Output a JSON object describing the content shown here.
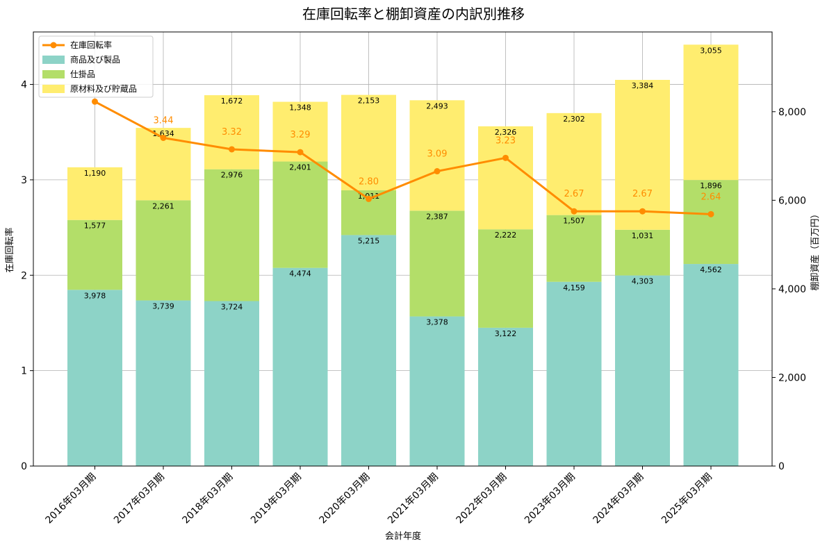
{
  "chart_data": {
    "type": "bar",
    "title": "在庫回転率と棚卸資産の内訳別推移",
    "xlabel": "会計年度",
    "ylabel_left": "在庫回転率",
    "ylabel_right": "棚卸資産（百万円）",
    "categories": [
      "2016年03月期",
      "2017年03月期",
      "2018年03月期",
      "2019年03月期",
      "2020年03月期",
      "2021年03月期",
      "2022年03月期",
      "2023年03月期",
      "2024年03月期",
      "2025年03月期"
    ],
    "series": [
      {
        "name": "商品及び製品",
        "kind": "bar",
        "axis": "right",
        "color": "#8dd3c7",
        "values": [
          3978,
          3739,
          3724,
          4474,
          5215,
          3378,
          3122,
          4159,
          4303,
          4562
        ],
        "labels": [
          "3,978",
          "3,739",
          "3,724",
          "4,474",
          "5,215",
          "3,378",
          "3,122",
          "4,159",
          "4,303",
          "4,562"
        ]
      },
      {
        "name": "仕掛品",
        "kind": "bar",
        "axis": "right",
        "color": "#b3de69",
        "values": [
          1577,
          2261,
          2976,
          2401,
          1011,
          2387,
          2222,
          1507,
          1031,
          1896
        ],
        "labels": [
          "1,577",
          "2,261",
          "2,976",
          "2,401",
          "1,011",
          "2,387",
          "2,222",
          "1,507",
          "1,031",
          "1,896"
        ]
      },
      {
        "name": "原材料及び貯蔵品",
        "kind": "bar",
        "axis": "right",
        "color": "#ffed6f",
        "values": [
          1190,
          1634,
          1672,
          1348,
          2153,
          2493,
          2326,
          2302,
          3384,
          3055
        ],
        "labels": [
          "1,190",
          "1,634",
          "1,672",
          "1,348",
          "2,153",
          "2,493",
          "2,326",
          "2,302",
          "3,384",
          "3,055"
        ]
      },
      {
        "name": "在庫回転率",
        "kind": "line",
        "axis": "left",
        "color": "#ff8c00",
        "values": [
          3.82,
          3.44,
          3.32,
          3.29,
          2.8,
          3.09,
          3.23,
          2.67,
          2.67,
          2.64
        ],
        "labels": [
          "",
          "3.44",
          "3.32",
          "3.29",
          "2.80",
          "3.09",
          "3.23",
          "2.67",
          "2.67",
          "2.64"
        ]
      }
    ],
    "ylim_left": [
      0,
      4.55
    ],
    "yticks_left": [
      0,
      1,
      2,
      3,
      4
    ],
    "yticks_left_labels": [
      "0",
      "1",
      "2",
      "3",
      "4"
    ],
    "ylim_right": [
      0,
      9800
    ],
    "yticks_right": [
      0,
      2000,
      4000,
      6000,
      8000
    ],
    "yticks_right_labels": [
      "0",
      "2,000",
      "4,000",
      "6,000",
      "8,000"
    ],
    "grid": true,
    "legend": "top-left"
  }
}
